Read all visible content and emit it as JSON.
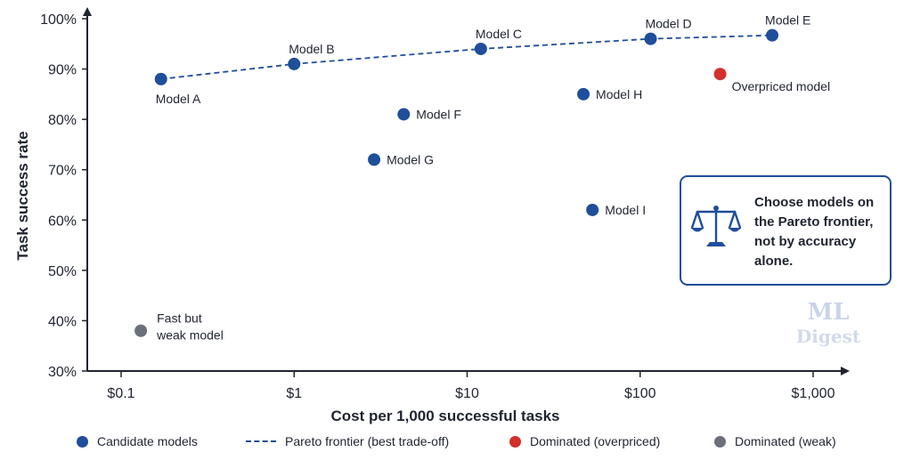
{
  "chart_data": {
    "type": "scatter",
    "title": "",
    "xlabel": "Cost per 1,000 successful tasks",
    "ylabel": "Task success rate",
    "x_scale": "log",
    "xlim": [
      0.06,
      1500
    ],
    "ylim": [
      30,
      100
    ],
    "x_ticks": [
      {
        "value": 0.1,
        "label": "$0.1"
      },
      {
        "value": 1,
        "label": "$1"
      },
      {
        "value": 10,
        "label": "$10"
      },
      {
        "value": 100,
        "label": "$100"
      },
      {
        "value": 1000,
        "label": "$1,000"
      }
    ],
    "y_ticks": [
      {
        "value": 30,
        "label": "30%"
      },
      {
        "value": 40,
        "label": "40%"
      },
      {
        "value": 50,
        "label": "50%"
      },
      {
        "value": 60,
        "label": "60%"
      },
      {
        "value": 70,
        "label": "70%"
      },
      {
        "value": 80,
        "label": "80%"
      },
      {
        "value": 90,
        "label": "90%"
      },
      {
        "value": 100,
        "label": "100%"
      }
    ],
    "grid": false,
    "legend_position": "bottom",
    "series": [
      {
        "name": "Candidate models",
        "kind": "scatter",
        "color": "#1f4e9a",
        "points": [
          {
            "label": "Model A",
            "x": 0.17,
            "y": 88,
            "label_pos": "below"
          },
          {
            "label": "Model B",
            "x": 1.0,
            "y": 91,
            "label_pos": "above"
          },
          {
            "label": "Model C",
            "x": 12,
            "y": 94,
            "label_pos": "above"
          },
          {
            "label": "Model D",
            "x": 115,
            "y": 96,
            "label_pos": "above"
          },
          {
            "label": "Model E",
            "x": 580,
            "y": 96.7,
            "label_pos": "above-right"
          },
          {
            "label": "Model F",
            "x": 4.3,
            "y": 81,
            "label_pos": "right"
          },
          {
            "label": "Model G",
            "x": 2.9,
            "y": 72,
            "label_pos": "right"
          },
          {
            "label": "Model H",
            "x": 47,
            "y": 85,
            "label_pos": "right"
          },
          {
            "label": "Model I",
            "x": 53,
            "y": 62,
            "label_pos": "right"
          }
        ]
      },
      {
        "name": "Pareto frontier (best trade-off)",
        "kind": "dashed-line",
        "color": "#1f4e9a",
        "points": [
          {
            "x": 0.17,
            "y": 88
          },
          {
            "x": 1.0,
            "y": 91
          },
          {
            "x": 12,
            "y": 94
          },
          {
            "x": 115,
            "y": 96
          },
          {
            "x": 580,
            "y": 96.7
          }
        ]
      },
      {
        "name": "Dominated (overpriced)",
        "kind": "scatter",
        "color": "#d3302b",
        "points": [
          {
            "label": "Overpriced model",
            "x": 290,
            "y": 89,
            "label_pos": "below-right"
          }
        ]
      },
      {
        "name": "Dominated (weak)",
        "kind": "scatter",
        "color": "#6b7079",
        "points": [
          {
            "label": "Fast but\nweak model",
            "x": 0.13,
            "y": 38,
            "label_pos": "upper-right"
          }
        ]
      }
    ]
  },
  "callout": {
    "icon": "scale-icon",
    "text": "Choose models on the Pareto frontier, not by accuracy alone."
  },
  "watermark": {
    "line1": "ML",
    "line2": "Digest"
  },
  "legend": [
    {
      "label": "Candidate models",
      "kind": "dot",
      "color": "#1f4e9a"
    },
    {
      "label": "Pareto frontier (best trade-off)",
      "kind": "dash",
      "color": "#1f4e9a"
    },
    {
      "label": "Dominated (overpriced)",
      "kind": "dot",
      "color": "#d3302b"
    },
    {
      "label": "Dominated (weak)",
      "kind": "dot",
      "color": "#6b7079"
    }
  ]
}
